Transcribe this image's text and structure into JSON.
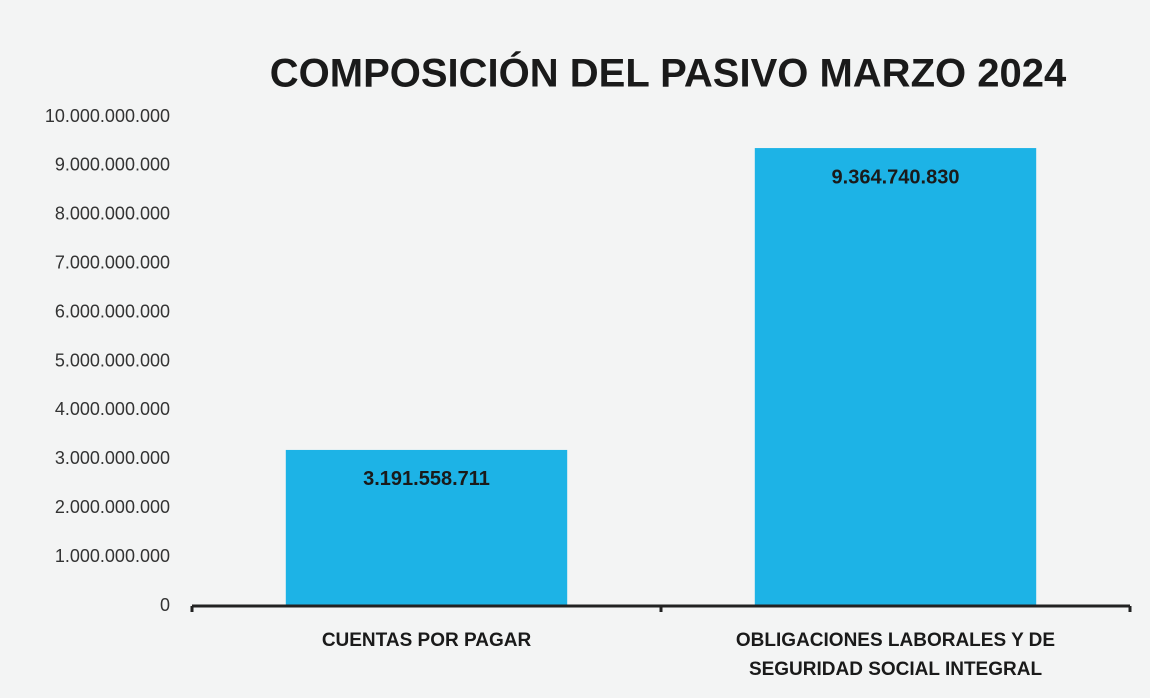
{
  "chart_data": {
    "type": "bar",
    "title": "COMPOSICIÓN DEL PASIVO MARZO 2024",
    "categories": [
      "CUENTAS POR PAGAR",
      "OBLIGACIONES LABORALES Y DE SEGURIDAD SOCIAL INTEGRAL"
    ],
    "values": [
      3191558711,
      9364740830
    ],
    "value_labels": [
      "3.191.558.711",
      "9.364.740.830"
    ],
    "color": "#1db3e6",
    "ylim": [
      0,
      10000000000
    ],
    "yticks": [
      0,
      {
        "value": 1000000000,
        "label": "1.000.000.000"
      },
      {
        "value": 2000000000,
        "label": "2.000.000.000"
      },
      {
        "value": 3000000000,
        "label": "3.000.000.000"
      },
      {
        "value": 4000000000,
        "label": "4.000.000.000"
      },
      {
        "value": 5000000000,
        "label": "5.000.000.000"
      },
      {
        "value": 6000000000,
        "label": "6.000.000.000"
      },
      {
        "value": 7000000000,
        "label": "7.000.000.000"
      },
      {
        "value": 8000000000,
        "label": "8.000.000.000"
      },
      {
        "value": 9000000000,
        "label": "9.000.000.000"
      },
      {
        "value": 10000000000,
        "label": "10.000.000.000"
      }
    ],
    "grid": false
  }
}
